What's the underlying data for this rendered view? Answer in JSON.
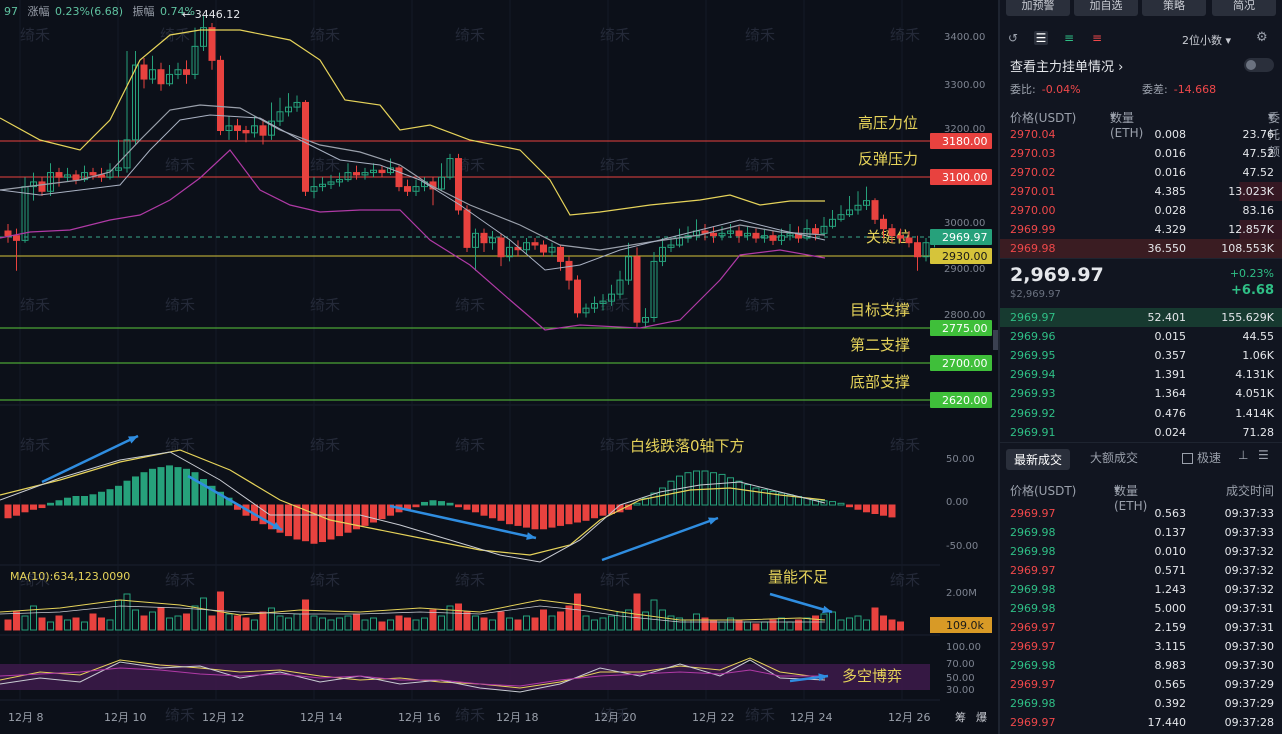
{
  "header": {
    "code": "97",
    "change_label": "涨幅",
    "change_value": "0.23%(6.68)",
    "amp_label": "振幅",
    "amp_value": "0.74%",
    "high_marker": "← 3446.12"
  },
  "price_axis": [
    "3400.00",
    "3300.00",
    "3200.00",
    "3000.00",
    "2900.00",
    "2800.00"
  ],
  "levels": [
    {
      "label": "高压力位",
      "price": "3180.00",
      "tag_color": "#e8423f"
    },
    {
      "label": "反弹压力",
      "price": "3100.00",
      "tag_color": "#e8423f"
    },
    {
      "label": "关键位",
      "price": "2969.97",
      "tag_color": "#26a17b"
    },
    {
      "label": "",
      "price": "2930.00",
      "tag_color": "#d6c43a"
    },
    {
      "label": "目标支撑",
      "price": "2775.00",
      "tag_color": "#3fbf3a"
    },
    {
      "label": "第二支撑",
      "price": "2700.00",
      "tag_color": "#3fbf3a"
    },
    {
      "label": "底部支撑",
      "price": "2620.00",
      "tag_color": "#3fbf3a"
    }
  ],
  "macd": {
    "annotation": "白线跌落0轴下方",
    "axis": [
      "50.00",
      "0.00",
      "-50.00"
    ]
  },
  "volume": {
    "ma_label": "MA(10):634,123.0090",
    "annotation": "量能不足",
    "axis_top": "2.00M",
    "current": "109.0k"
  },
  "rsi": {
    "annotation": "多空博弈",
    "axis": [
      "100.00",
      "70.00",
      "50.00",
      "30.00"
    ]
  },
  "watermark": "绮禾",
  "x_labels": [
    "12月 8",
    "12月 10",
    "12月 12",
    "12月 14",
    "12月 16",
    "12月 18",
    "12月 20",
    "12月 22",
    "12月 24",
    "12月 26"
  ],
  "x_right": [
    "筹",
    "爆"
  ],
  "panel": {
    "buttons": [
      "加预警",
      "加自选",
      "策略",
      "简况"
    ],
    "decimal": "2位小数",
    "title": "查看主力挂单情况",
    "ratio_label": "委比:",
    "ratio_value": "-0.04%",
    "diff_label": "委差:",
    "diff_value": "-14.668",
    "ob_headers": [
      "价格(USDT)",
      "数量(ETH)",
      "委托额"
    ],
    "asks": [
      [
        "2970.04",
        "0.008",
        "23.76"
      ],
      [
        "2970.03",
        "0.016",
        "47.52"
      ],
      [
        "2970.02",
        "0.016",
        "47.52"
      ],
      [
        "2970.01",
        "4.385",
        "13.023K"
      ],
      [
        "2970.00",
        "0.028",
        "83.16"
      ],
      [
        "2969.99",
        "4.329",
        "12.857K"
      ],
      [
        "2969.98",
        "36.550",
        "108.553K"
      ]
    ],
    "last_price": "2,969.97",
    "last_sub": "$2,969.97",
    "last_pct": "+0.23%",
    "last_chg": "+6.68",
    "bids": [
      [
        "2969.97",
        "52.401",
        "155.629K"
      ],
      [
        "2969.96",
        "0.015",
        "44.55"
      ],
      [
        "2969.95",
        "0.357",
        "1.06K"
      ],
      [
        "2969.94",
        "1.391",
        "4.131K"
      ],
      [
        "2969.93",
        "1.364",
        "4.051K"
      ],
      [
        "2969.92",
        "0.476",
        "1.414K"
      ],
      [
        "2969.91",
        "0.024",
        "71.28"
      ]
    ],
    "tab_latest": "最新成交",
    "tab_large": "大额成交",
    "speed": "极速",
    "tr_headers": [
      "价格(USDT)",
      "数量(ETH)",
      "成交时间"
    ],
    "trades": [
      [
        "2969.97",
        "0.563",
        "09:37:33",
        "down"
      ],
      [
        "2969.98",
        "0.137",
        "09:37:33",
        "up"
      ],
      [
        "2969.98",
        "0.010",
        "09:37:32",
        "up"
      ],
      [
        "2969.97",
        "0.571",
        "09:37:32",
        "down"
      ],
      [
        "2969.98",
        "1.243",
        "09:37:32",
        "up"
      ],
      [
        "2969.98",
        "5.000",
        "09:37:31",
        "up"
      ],
      [
        "2969.97",
        "2.159",
        "09:37:31",
        "down"
      ],
      [
        "2969.97",
        "3.115",
        "09:37:30",
        "down"
      ],
      [
        "2969.98",
        "8.983",
        "09:37:30",
        "up"
      ],
      [
        "2969.97",
        "0.565",
        "09:37:29",
        "down"
      ],
      [
        "2969.98",
        "0.392",
        "09:37:29",
        "up"
      ],
      [
        "2969.97",
        "17.440",
        "09:37:28",
        "down"
      ]
    ]
  }
}
